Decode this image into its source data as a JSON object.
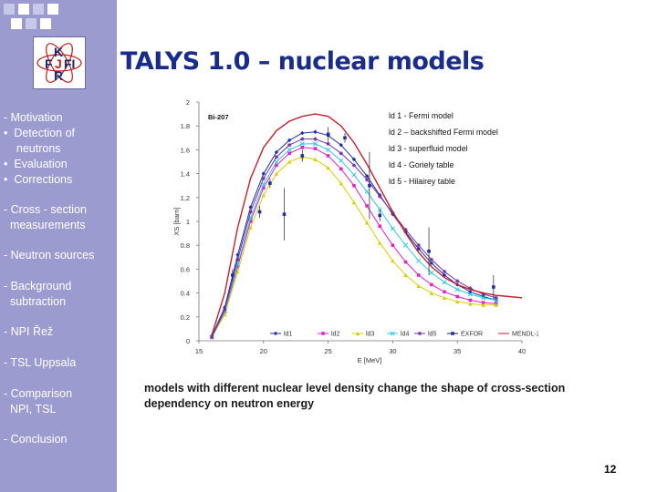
{
  "slide": {
    "title": "TALYS 1.0 – nuclear models",
    "page_number": "12",
    "caption": "models with different nuclear level density change the shape of cross-section dependency on neutron energy"
  },
  "logo": {
    "letters": [
      "K",
      "F",
      "J",
      "FI",
      "R"
    ]
  },
  "sidebar": {
    "items": [
      "- Motivation\n•  Detection of\n    neutrons\n•  Evaluation\n•  Corrections",
      "- Cross - section\n  measurements",
      "- Neutron sources",
      "- Background\n  subtraction",
      "- NPI Řež",
      "- TSL Uppsala",
      "- Comparison\n  NPI, TSL",
      "- Conclusion"
    ]
  },
  "colors": {
    "sidebar": "#9b9bcf",
    "title": "#1a2c8a"
  },
  "chart_data": {
    "type": "line",
    "sample_label": "Bi-207",
    "xlabel": "E [MeV]",
    "ylabel": "XS [barn]",
    "xlim": [
      15,
      40
    ],
    "ylim": [
      0,
      2
    ],
    "xticks": [
      "15",
      "20",
      "25",
      "30",
      "35",
      "40"
    ],
    "yticks": [
      "0",
      "0.2",
      "0.4",
      "0.6",
      "0.8",
      "1",
      "1.2",
      "1.4",
      "1.6",
      "1.8",
      "2"
    ],
    "model_notes": [
      "ld 1 - Fermi model",
      "ld 2 – backshifted Fermi model",
      "ld 3 - superfluid model",
      "ld 4 - Goriely table",
      "ld 5 - Hilairey table"
    ],
    "series": [
      {
        "name": "ld1",
        "color": "#1f2fa8",
        "marker": "diamond",
        "x": [
          16,
          17,
          18,
          19,
          20,
          21,
          22,
          23,
          24,
          25,
          26,
          27,
          28,
          29,
          30,
          31,
          32,
          33,
          34,
          35,
          36,
          37,
          38
        ],
        "y": [
          0.04,
          0.28,
          0.72,
          1.12,
          1.4,
          1.58,
          1.68,
          1.74,
          1.75,
          1.72,
          1.64,
          1.52,
          1.38,
          1.22,
          1.06,
          0.91,
          0.77,
          0.65,
          0.55,
          0.47,
          0.41,
          0.37,
          0.34
        ]
      },
      {
        "name": "ld2",
        "color": "#e020c8",
        "marker": "square",
        "x": [
          16,
          17,
          18,
          19,
          20,
          21,
          22,
          23,
          24,
          25,
          26,
          27,
          28,
          29,
          30,
          31,
          32,
          33,
          34,
          35,
          36,
          37,
          38
        ],
        "y": [
          0.03,
          0.24,
          0.62,
          1.0,
          1.28,
          1.47,
          1.57,
          1.62,
          1.61,
          1.55,
          1.44,
          1.3,
          1.13,
          0.96,
          0.8,
          0.66,
          0.55,
          0.47,
          0.41,
          0.37,
          0.34,
          0.32,
          0.31
        ]
      },
      {
        "name": "ld3",
        "color": "#d8d000",
        "marker": "triangle",
        "x": [
          16,
          17,
          18,
          19,
          20,
          21,
          22,
          23,
          24,
          25,
          26,
          27,
          28,
          29,
          30,
          31,
          32,
          33,
          34,
          35,
          36,
          37,
          38
        ],
        "y": [
          0.03,
          0.22,
          0.58,
          0.95,
          1.22,
          1.4,
          1.5,
          1.54,
          1.52,
          1.45,
          1.32,
          1.16,
          0.99,
          0.82,
          0.67,
          0.55,
          0.46,
          0.4,
          0.36,
          0.33,
          0.31,
          0.3,
          0.3
        ]
      },
      {
        "name": "ld4",
        "color": "#30c8e0",
        "marker": "x",
        "x": [
          16,
          17,
          18,
          19,
          20,
          21,
          22,
          23,
          24,
          25,
          26,
          27,
          28,
          29,
          30,
          31,
          32,
          33,
          34,
          35,
          36,
          37,
          38
        ],
        "y": [
          0.03,
          0.25,
          0.64,
          1.03,
          1.31,
          1.5,
          1.6,
          1.65,
          1.65,
          1.6,
          1.51,
          1.39,
          1.25,
          1.1,
          0.94,
          0.8,
          0.67,
          0.57,
          0.49,
          0.43,
          0.39,
          0.36,
          0.34
        ]
      },
      {
        "name": "ld5",
        "color": "#7030a0",
        "marker": "star",
        "x": [
          16,
          17,
          18,
          19,
          20,
          21,
          22,
          23,
          24,
          25,
          26,
          27,
          28,
          29,
          30,
          31,
          32,
          33,
          34,
          35,
          36,
          37,
          38
        ],
        "y": [
          0.03,
          0.26,
          0.68,
          1.08,
          1.36,
          1.54,
          1.64,
          1.69,
          1.69,
          1.65,
          1.57,
          1.47,
          1.35,
          1.21,
          1.07,
          0.93,
          0.8,
          0.68,
          0.58,
          0.5,
          0.44,
          0.39,
          0.36
        ]
      },
      {
        "name": "MENDL-2",
        "color": "#c0202a",
        "marker": "none",
        "x": [
          16,
          17,
          18,
          19,
          20,
          21,
          22,
          23,
          24,
          25,
          26,
          27,
          28,
          29,
          30,
          31,
          32,
          33,
          34,
          35,
          36,
          37,
          38,
          39,
          40
        ],
        "y": [
          0.05,
          0.4,
          0.95,
          1.36,
          1.62,
          1.76,
          1.84,
          1.88,
          1.9,
          1.88,
          1.8,
          1.66,
          1.48,
          1.28,
          1.08,
          0.9,
          0.74,
          0.62,
          0.53,
          0.47,
          0.43,
          0.4,
          0.38,
          0.37,
          0.36
        ]
      }
    ],
    "exfor": {
      "name": "EXFOR",
      "color": "#1f2fa8",
      "points": [
        {
          "x": 17.6,
          "y": 0.55,
          "err": 0.05
        },
        {
          "x": 19.7,
          "y": 1.08,
          "err": 0.05
        },
        {
          "x": 20.5,
          "y": 1.32,
          "err": 0.04
        },
        {
          "x": 21.6,
          "y": 1.06,
          "err": 0.22
        },
        {
          "x": 23.0,
          "y": 1.55,
          "err": 0.05
        },
        {
          "x": 25.0,
          "y": 1.73,
          "err": 0.06
        },
        {
          "x": 26.3,
          "y": 1.7,
          "err": 0.04
        },
        {
          "x": 28.2,
          "y": 1.3,
          "err": 0.28
        },
        {
          "x": 29.0,
          "y": 1.05,
          "err": 0.05
        },
        {
          "x": 32.8,
          "y": 0.75,
          "err": 0.2
        },
        {
          "x": 37.8,
          "y": 0.45,
          "err": 0.1
        }
      ]
    },
    "legend": [
      "ld1",
      "ld2",
      "ld3",
      "ld4",
      "ld5",
      "EXFOR",
      "MENDL-2"
    ],
    "legend_position": "bottom"
  }
}
